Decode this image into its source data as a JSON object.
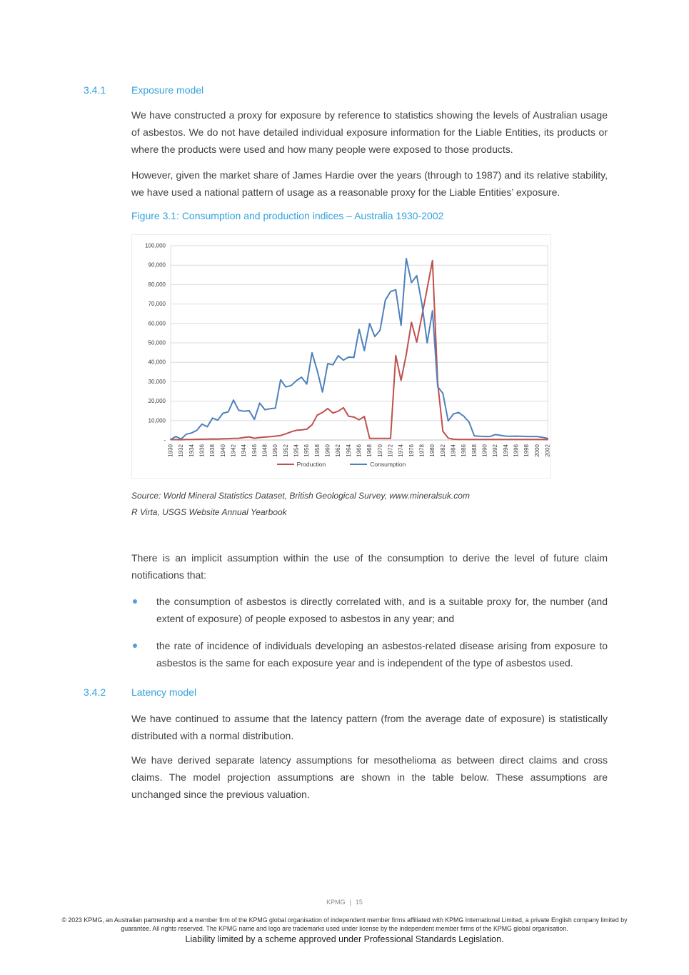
{
  "colors": {
    "heading_blue": "#31a3dc",
    "body_text": "#3f3f3f",
    "bullet_blue": "#5b9bd5",
    "production_red": "#c0504d",
    "consumption_blue": "#4f81bd",
    "gridline": "#dcdcdc",
    "footer_gray": "#8c8c8c"
  },
  "section_341": {
    "number": "3.4.1",
    "title": "Exposure model",
    "para1": "We have constructed a proxy for exposure by reference to statistics showing the levels of Australian usage of asbestos. We do not have detailed individual exposure information for the Liable Entities, its products or where the products were used and how many people were exposed to those products.",
    "para2": "However, given the market share of James Hardie over the years (through to 1987) and its relative stability, we have used a national pattern of usage as a reasonable proxy for the Liable Entities’ exposure."
  },
  "figure": {
    "caption": "Figure 3.1: Consumption and production indices – Australia 1930-2002",
    "source_line1": "Source: World Mineral Statistics Dataset, British Geological Survey, www.mineralsuk.com",
    "source_line2": "R Virta, USGS Website Annual Yearbook"
  },
  "chart_data": {
    "type": "line",
    "title": "Consumption and production indices – Australia 1930-2002",
    "xlabel": "",
    "ylabel": "",
    "grid": true,
    "legend_position": "bottom",
    "x_axis": {
      "start": 1930,
      "end": 2002,
      "interval": 1,
      "tick_step": 2
    },
    "x_tick_labels": [
      1930,
      1932,
      1934,
      1936,
      1938,
      1940,
      1942,
      1944,
      1946,
      1948,
      1950,
      1952,
      1954,
      1956,
      1958,
      1960,
      1962,
      1964,
      1966,
      1968,
      1970,
      1972,
      1974,
      1976,
      1978,
      1980,
      1982,
      1984,
      1986,
      1988,
      1990,
      1992,
      1994,
      1996,
      1998,
      2000,
      2002
    ],
    "y_axis": {
      "min": 0,
      "max": 100000,
      "step": 10000,
      "zero_label": "-"
    },
    "y_tick_labels": [
      "-",
      "10,000",
      "20,000",
      "30,000",
      "40,000",
      "50,000",
      "60,000",
      "70,000",
      "80,000",
      "90,000",
      "100,000"
    ],
    "series": [
      {
        "name": "Production",
        "color": "#c0504d",
        "values": [
          200,
          200,
          150,
          250,
          300,
          350,
          400,
          450,
          550,
          500,
          650,
          700,
          800,
          900,
          1300,
          1600,
          900,
          1300,
          1500,
          1700,
          2000,
          2300,
          3200,
          4200,
          5000,
          5200,
          5600,
          7800,
          12800,
          14200,
          16200,
          13900,
          14800,
          16600,
          12200,
          11800,
          10400,
          12100,
          800,
          800,
          800,
          800,
          800,
          43500,
          30700,
          44000,
          60600,
          50400,
          64000,
          78000,
          92400,
          29500,
          4500,
          1000,
          400,
          300,
          300,
          300,
          300,
          300,
          300,
          300,
          300,
          300,
          300,
          300,
          300,
          300,
          300,
          300,
          300,
          300,
          200
        ]
      },
      {
        "name": "Consumption",
        "color": "#4f81bd",
        "values": [
          300,
          1800,
          500,
          3000,
          3600,
          5000,
          8200,
          6800,
          11300,
          10200,
          13800,
          14500,
          20600,
          15300,
          14800,
          15100,
          10600,
          19000,
          15600,
          16100,
          16400,
          31000,
          27300,
          28000,
          30500,
          32300,
          28800,
          44900,
          35700,
          24700,
          39300,
          38700,
          43400,
          41100,
          42700,
          42500,
          57000,
          46000,
          60000,
          53200,
          56500,
          72000,
          76400,
          77300,
          59000,
          93400,
          81000,
          84600,
          70000,
          50000,
          66500,
          27500,
          24000,
          9800,
          13400,
          14200,
          12200,
          9200,
          2100,
          1900,
          1800,
          1800,
          2800,
          2400,
          2000,
          1900,
          2000,
          1900,
          1800,
          1800,
          1800,
          1400,
          800
        ]
      }
    ]
  },
  "assumption": {
    "intro": "There is an implicit assumption within the use of the consumption to derive the level of future claim notifications that:",
    "bullets": [
      "the consumption of asbestos is directly correlated with, and is a suitable proxy for, the number (and extent of exposure) of people exposed to asbestos in any year; and",
      "the rate of incidence of individuals developing an asbestos-related disease arising from exposure to asbestos is the same for each exposure year and is independent of the type of asbestos used."
    ]
  },
  "section_342": {
    "number": "3.4.2",
    "title": "Latency model",
    "para1": "We have continued to assume that the latency pattern (from the average date of exposure) is statistically distributed with a normal distribution.",
    "para2": "We have derived separate latency assumptions for mesothelioma as between direct claims and cross claims. The model projection assumptions are shown in the table below. These assumptions are unchanged since the previous valuation."
  },
  "footer": {
    "page_label": "KPMG",
    "page_separator": "|",
    "page_number": "15",
    "legal": "© 2023 KPMG, an Australian partnership and a member firm of the KPMG global organisation of independent member firms affiliated with KPMG International Limited, a private English company limited by guarantee. All rights reserved. The KPMG name and logo are trademarks used under license by the independent member firms of the KPMG global organisation.",
    "liability": "Liability limited by a scheme approved under Professional Standards Legislation."
  }
}
